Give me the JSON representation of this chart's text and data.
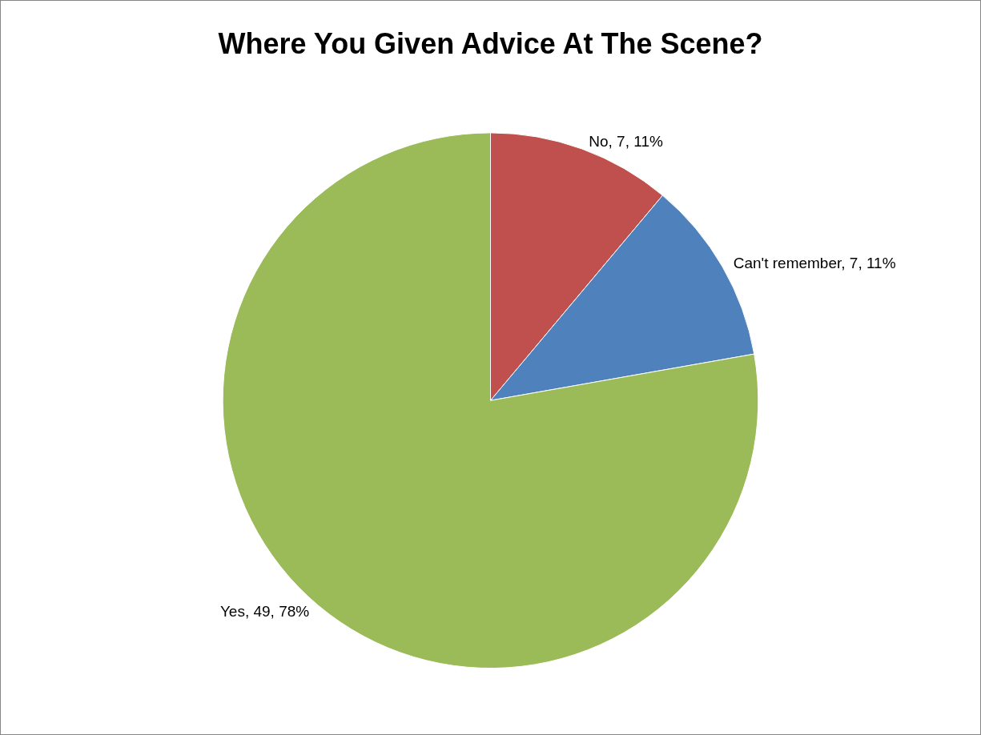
{
  "chart_data": {
    "type": "pie",
    "title": "Where You Given Advice At The Scene?",
    "categories": [
      "No",
      "Can't remember",
      "Yes"
    ],
    "values": [
      7,
      7,
      49
    ],
    "colors": [
      "#c0504d",
      "#4f81bd",
      "#9bbb59"
    ],
    "value_labels": [
      "7, 11%",
      "7, 11%",
      "49, 78%"
    ],
    "legend": false
  }
}
